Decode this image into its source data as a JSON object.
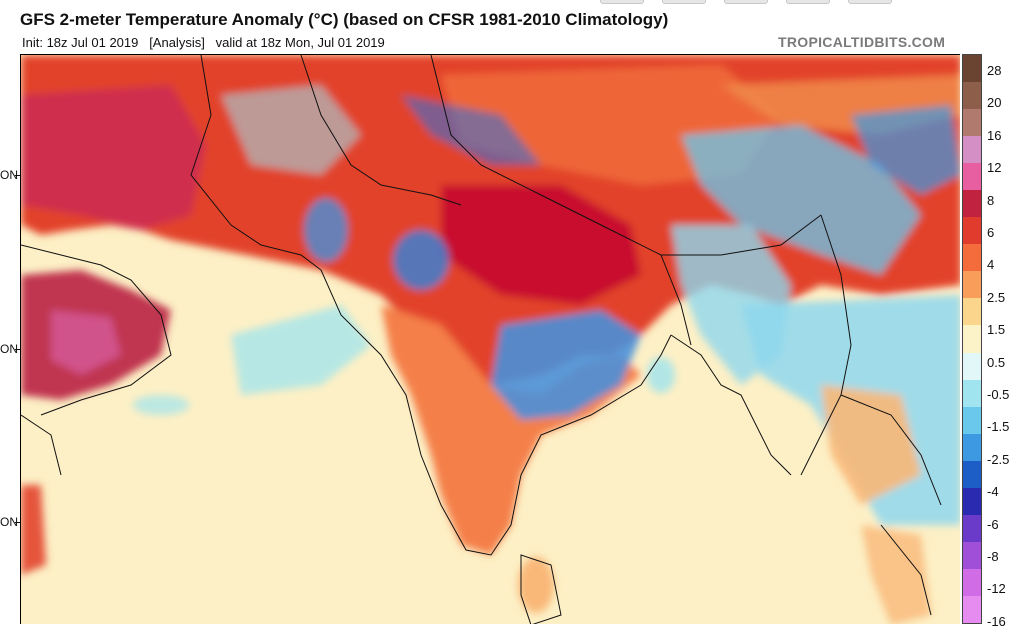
{
  "header": {
    "title": "GFS 2-meter Temperature Anomaly (°C) (based on CFSR 1981-2010 Climatology)",
    "subtitle": "Init: 18z Jul 01 2019   [Analysis]   valid at 18z Mon, Jul 01 2019",
    "watermark": "TROPICALTIDBITS.COM"
  },
  "map": {
    "lat_labels": [
      {
        "text": "ON"
      },
      {
        "text": "ON"
      },
      {
        "text": "ON"
      }
    ]
  },
  "legend": {
    "labels": [
      "28",
      "20",
      "16",
      "12",
      "8",
      "6",
      "4",
      "2.5",
      "1.5",
      "0.5",
      "-0.5",
      "-1.5",
      "-2.5",
      "-4",
      "-6",
      "-8",
      "-12",
      "-16"
    ],
    "colors": [
      "#6a4331",
      "#8d5f4b",
      "#b07b6e",
      "#d48fc4",
      "#e75fa0",
      "#c02240",
      "#e03b2d",
      "#f46c3c",
      "#f89e5a",
      "#fbd58b",
      "#fdf3c8",
      "#e2f7f8",
      "#9fe4ee",
      "#6ac8ec",
      "#3d9ae2",
      "#1d5ec6",
      "#2a2ab0",
      "#6a3bc8",
      "#a050d8",
      "#d06ce6",
      "#e68cf0"
    ]
  },
  "colors": {
    "hot_strong": "#c8102e",
    "hot": "#e2422c",
    "warm": "#f47f4a",
    "mild": "#f9b878",
    "near_zero": "#fde9b8",
    "cool": "#8fd7ee",
    "cold": "#4a90d9"
  }
}
